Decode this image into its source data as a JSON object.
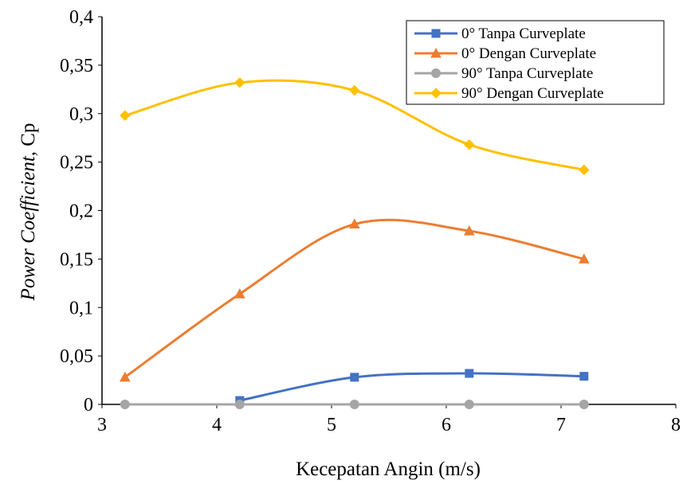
{
  "chart_data": {
    "type": "line",
    "title": "",
    "xlabel": "Kecepatan Angin (m/s)",
    "ylabel_italic": "Power Coefficient,",
    "ylabel_rest": " Cp",
    "xlim": [
      3,
      8
    ],
    "ylim": [
      0,
      0.4
    ],
    "x_ticks": [
      3,
      4,
      5,
      6,
      7,
      8
    ],
    "x_tick_labels": [
      "3",
      "4",
      "5",
      "6",
      "7",
      "8"
    ],
    "y_ticks": [
      0,
      0.05,
      0.1,
      0.15,
      0.2,
      0.25,
      0.3,
      0.35,
      0.4
    ],
    "y_tick_labels": [
      "0",
      "0,05",
      "0,1",
      "0,15",
      "0,2",
      "0,25",
      "0,3",
      "0,35",
      "0,4"
    ],
    "grid": false,
    "smooth": true,
    "legend_position": "top-right",
    "series": [
      {
        "name": "0° Tanpa Curveplate",
        "color": "#4472C4",
        "marker": "square",
        "x": [
          4.2,
          5.2,
          6.2,
          7.2
        ],
        "y": [
          0.004,
          0.028,
          0.032,
          0.029
        ]
      },
      {
        "name": "0° Dengan Curveplate",
        "color": "#ED7D31",
        "marker": "triangle",
        "x": [
          3.2,
          4.2,
          5.2,
          6.2,
          7.2
        ],
        "y": [
          0.028,
          0.114,
          0.186,
          0.179,
          0.15
        ]
      },
      {
        "name": "90° Tanpa Curveplate",
        "color": "#A5A5A5",
        "marker": "circle",
        "x": [
          3.2,
          4.2,
          5.2,
          6.2,
          7.2
        ],
        "y": [
          0,
          0,
          0,
          0,
          0
        ]
      },
      {
        "name": "90° Dengan Curveplate",
        "color": "#FFC000",
        "marker": "diamond",
        "x": [
          3.2,
          4.2,
          5.2,
          6.2,
          7.2
        ],
        "y": [
          0.298,
          0.332,
          0.324,
          0.268,
          0.242
        ]
      }
    ]
  }
}
